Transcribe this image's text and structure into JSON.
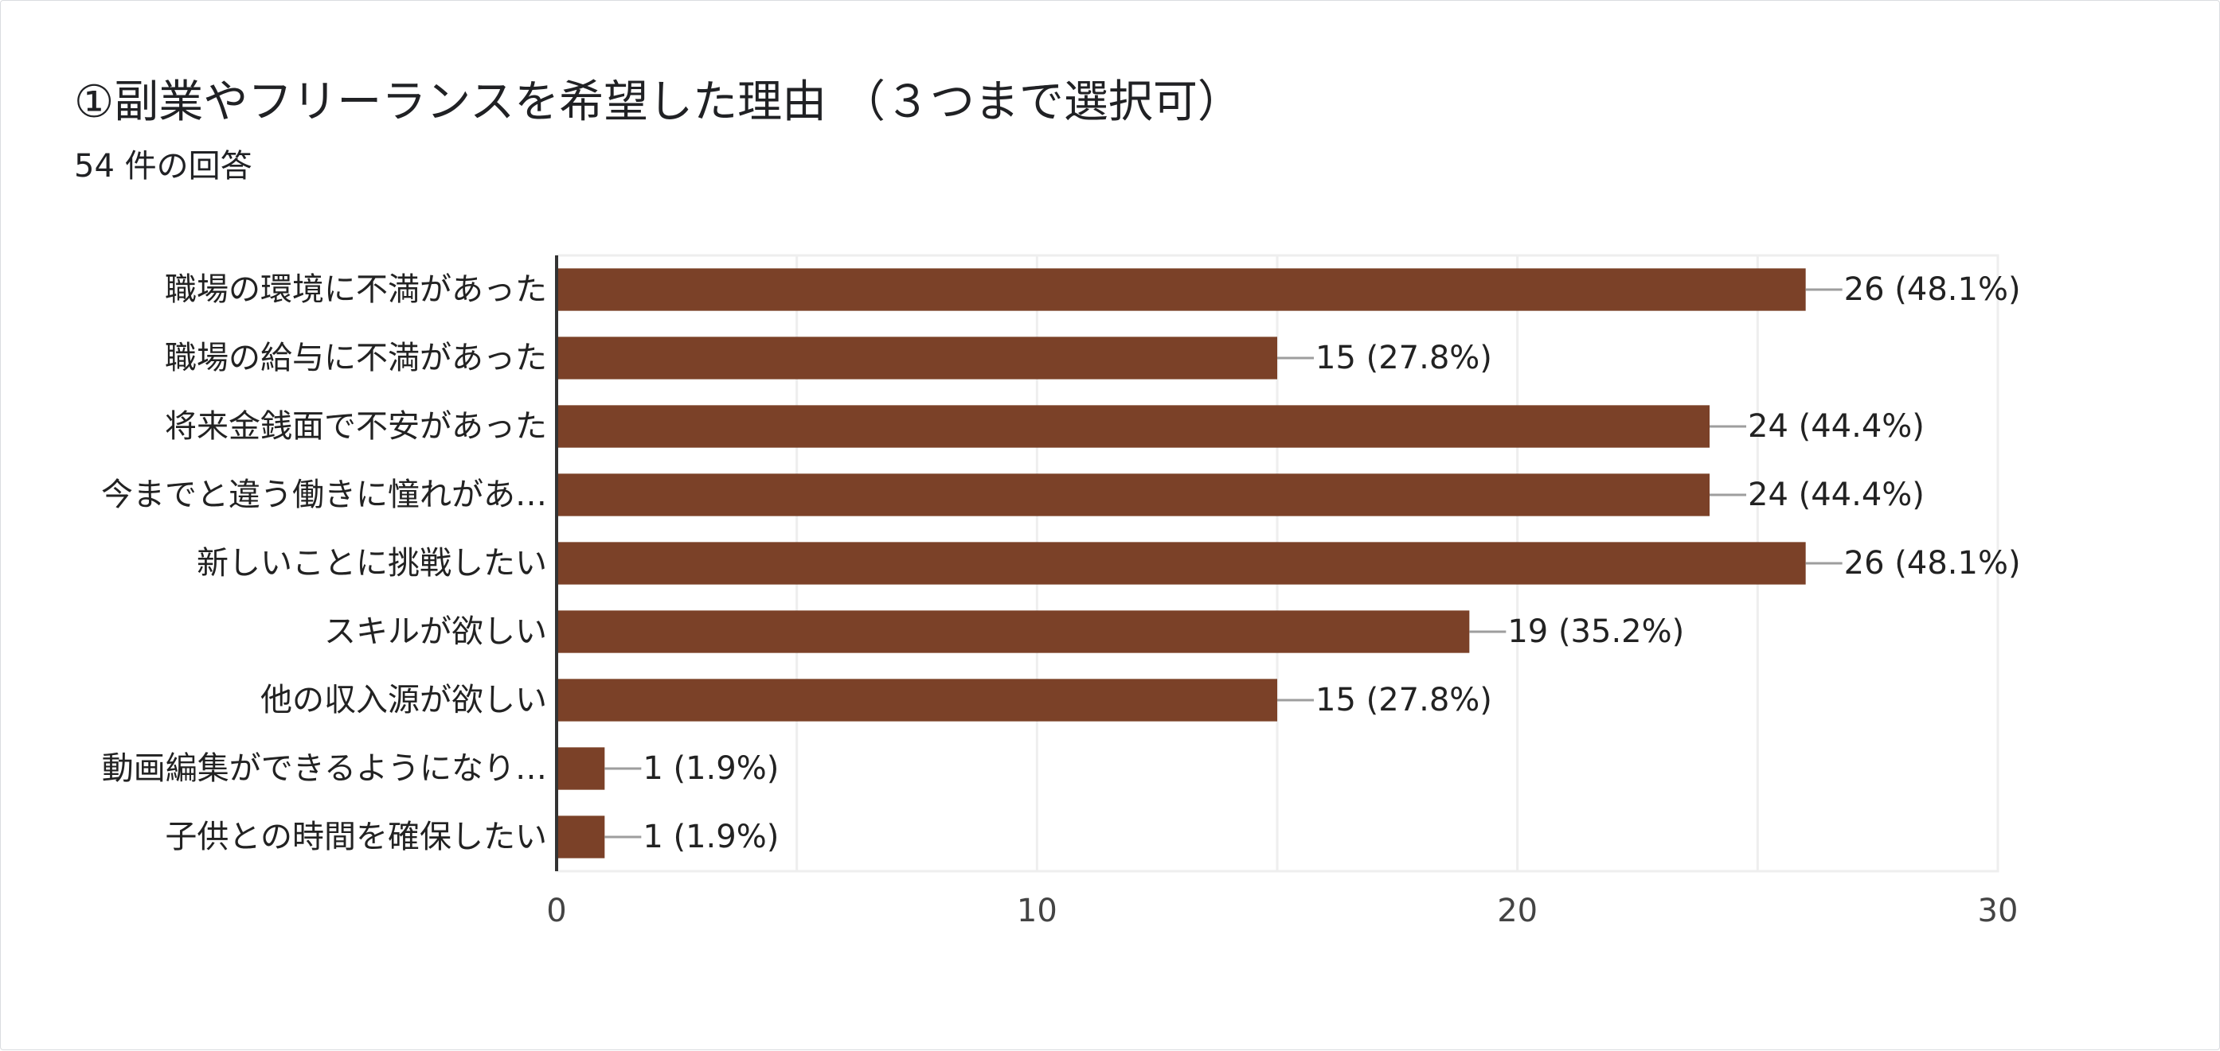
{
  "header": {
    "title": "①副業やフリーランスを希望した理由 （３つまで選択可）",
    "response_count": "54 件の回答"
  },
  "colors": {
    "bar": "#7b4128",
    "grid": "#eeeeee",
    "axis": "#333333",
    "leader": "#9e9e9e"
  },
  "chart_data": {
    "type": "bar",
    "orientation": "horizontal",
    "categories": [
      "職場の環境に不満があった",
      "職場の給与に不満があった",
      "将来金銭面で不安があった",
      "今までと違う働きに憧れがあ…",
      "新しいことに挑戦したい",
      "スキルが欲しい",
      "他の収入源が欲しい",
      "動画編集ができるようになり…",
      "子供との時間を確保したい"
    ],
    "values": [
      26,
      15,
      24,
      24,
      26,
      19,
      15,
      1,
      1
    ],
    "data_labels": [
      "26 (48.1%)",
      "15 (27.8%)",
      "24 (44.4%)",
      "24 (44.4%)",
      "26 (48.1%)",
      "19 (35.2%)",
      "15 (27.8%)",
      "1 (1.9%)",
      "1 (1.9%)"
    ],
    "xlim": [
      0,
      30
    ],
    "xticks": [
      0,
      10,
      20,
      30
    ],
    "xtick_labels": [
      "0",
      "10",
      "20",
      "30"
    ],
    "grid": true,
    "legend": "none"
  }
}
